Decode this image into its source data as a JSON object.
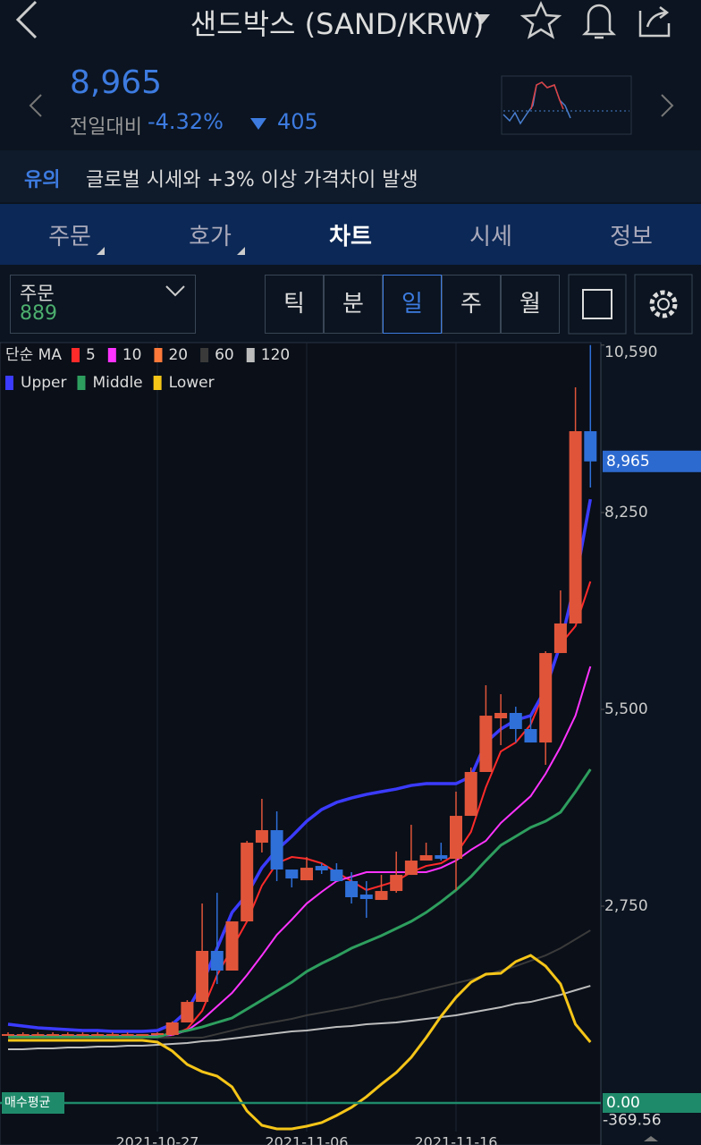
{
  "header": {
    "title": "샌드박스 (SAND/KRW)",
    "price": "8,965",
    "change_label": "전일대비",
    "change_pct": "-4.32%",
    "change_amt": "405"
  },
  "notice": {
    "tag": "유의",
    "text": "글로벌 시세와 +3% 이상 가격차이 발생"
  },
  "tabs": [
    "주문",
    "호가",
    "차트",
    "시세",
    "정보"
  ],
  "order_box": {
    "label": "주문",
    "value": "889"
  },
  "periods": [
    "틱",
    "분",
    "일",
    "주",
    "월"
  ],
  "chart_data": {
    "type": "candlestick",
    "ma_label": "단순 MA",
    "categories": [
      null,
      null,
      null,
      null,
      null,
      null,
      null,
      null,
      null,
      null,
      "2021-10-27",
      null,
      null,
      null,
      null,
      null,
      null,
      null,
      null,
      null,
      "2021-11-06",
      null,
      null,
      null,
      null,
      null,
      null,
      null,
      null,
      null,
      "2021-11-16",
      null,
      null,
      null,
      null,
      null,
      null,
      null,
      null,
      null
    ],
    "open": [
      950,
      950,
      950,
      950,
      950,
      950,
      950,
      950,
      950,
      950,
      962,
      950,
      1125,
      1412,
      2125,
      1850,
      2537,
      3637,
      3812,
      3262,
      3112,
      3312,
      3262,
      3100,
      2912,
      2837,
      2962,
      3187,
      3387,
      3462,
      3412,
      4012,
      4625,
      5375,
      5450,
      5225,
      5037,
      6287,
      6700,
      9387
    ],
    "high": [
      987,
      987,
      987,
      987,
      987,
      987,
      987,
      987,
      987,
      962,
      987,
      1140,
      1437,
      2787,
      2937,
      2537,
      3662,
      4250,
      4075,
      3262,
      3437,
      3350,
      3350,
      3225,
      3100,
      3187,
      3512,
      3887,
      3637,
      3637,
      4350,
      4687,
      5837,
      5712,
      5537,
      5412,
      6312,
      7162,
      10000,
      10590
    ],
    "low": [
      937,
      937,
      937,
      937,
      937,
      937,
      937,
      937,
      937,
      937,
      950,
      940,
      1125,
      1412,
      1662,
      1850,
      2537,
      3500,
      3100,
      3012,
      3112,
      3200,
      3100,
      2787,
      2587,
      2837,
      2937,
      3187,
      3387,
      3387,
      2975,
      4012,
      4625,
      5000,
      5037,
      5037,
      4725,
      6287,
      6700,
      8600
    ],
    "close": [
      962,
      962,
      962,
      962,
      962,
      962,
      962,
      962,
      962,
      962,
      975,
      1125,
      1412,
      2125,
      1850,
      2537,
      3637,
      3812,
      3262,
      3137,
      3287,
      3250,
      3100,
      2875,
      2850,
      2962,
      3187,
      3387,
      3462,
      3412,
      4012,
      4625,
      5412,
      5450,
      5225,
      5037,
      6287,
      6700,
      9387,
      8965
    ],
    "up_color": "#e0553a",
    "down_color": "#2f6fd8",
    "series": [
      {
        "name": "5",
        "color": "#ff2a2a",
        "values": [
          937,
          937,
          937,
          937,
          937,
          937,
          937,
          937,
          937,
          937,
          937,
          950,
          1037,
          1287,
          1787,
          2162,
          2537,
          3037,
          3350,
          3437,
          3412,
          3350,
          3225,
          3100,
          2975,
          3037,
          3100,
          3225,
          3312,
          3350,
          3475,
          3787,
          4412,
          4912,
          5037,
          5287,
          5787,
          6412,
          6662,
          7287
        ]
      },
      {
        "name": "10",
        "color": "#ff33ff",
        "values": [
          937,
          937,
          937,
          937,
          937,
          937,
          937,
          937,
          937,
          937,
          937,
          950,
          1012,
          1162,
          1350,
          1537,
          1787,
          2062,
          2350,
          2562,
          2787,
          2950,
          3100,
          3162,
          3225,
          3225,
          3225,
          3225,
          3225,
          3287,
          3387,
          3537,
          3662,
          3912,
          4100,
          4287,
          4600,
          4975,
          5412,
          6100
        ]
      },
      {
        "name": "20",
        "color": "#ff7a3a",
        "values": [
          925,
          925,
          925,
          925,
          925,
          925,
          925,
          925,
          925,
          925,
          925,
          975,
          1012,
          1062,
          1125,
          1187,
          1312,
          1437,
          1562,
          1687,
          1837,
          1950,
          2050,
          2162,
          2250,
          2337,
          2437,
          2537,
          2662,
          2812,
          2975,
          3162,
          3387,
          3600,
          3725,
          3850,
          3937,
          4062,
          4350,
          4662
        ]
      },
      {
        "name": "60",
        "color": "#3a3a3a",
        "values": [
          912,
          912,
          912,
          912,
          912,
          912,
          912,
          912,
          912,
          912,
          912,
          912,
          912,
          912,
          962,
          1012,
          1062,
          1100,
          1137,
          1175,
          1225,
          1262,
          1300,
          1337,
          1387,
          1437,
          1475,
          1525,
          1575,
          1625,
          1675,
          1725,
          1787,
          1850,
          1912,
          1987,
          2062,
          2162,
          2287,
          2412
        ]
      },
      {
        "name": "120",
        "color": "#bdbdbd",
        "values": [
          750,
          750,
          762,
          762,
          775,
          775,
          787,
          787,
          800,
          800,
          812,
          825,
          837,
          862,
          875,
          900,
          925,
          950,
          975,
          1000,
          1012,
          1037,
          1062,
          1075,
          1100,
          1112,
          1125,
          1150,
          1175,
          1200,
          1225,
          1262,
          1300,
          1337,
          1387,
          1412,
          1462,
          1512,
          1575,
          1637
        ]
      }
    ],
    "bands": [
      {
        "name": "Upper",
        "color": "#3b3bff",
        "values": [
          1100,
          1075,
          1050,
          1037,
          1025,
          1012,
          1012,
          1000,
          1000,
          1000,
          1012,
          1100,
          1287,
          1662,
          2162,
          2662,
          2912,
          3287,
          3537,
          3725,
          3937,
          4100,
          4200,
          4262,
          4312,
          4350,
          4387,
          4437,
          4462,
          4462,
          4462,
          4562,
          5037,
          5225,
          5350,
          5412,
          5787,
          6412,
          7287,
          8437
        ]
      },
      {
        "name": "Middle",
        "color": "#2e9e5e",
        "values": [
          925,
          925,
          925,
          925,
          925,
          925,
          925,
          925,
          925,
          925,
          925,
          975,
          1012,
          1062,
          1125,
          1187,
          1312,
          1437,
          1562,
          1687,
          1837,
          1950,
          2050,
          2162,
          2250,
          2337,
          2437,
          2537,
          2662,
          2812,
          2975,
          3162,
          3387,
          3600,
          3725,
          3850,
          3937,
          4062,
          4350,
          4662
        ]
      },
      {
        "name": "Lower",
        "color": "#f5c518",
        "values": [
          875,
          875,
          875,
          875,
          875,
          875,
          875,
          875,
          875,
          875,
          850,
          725,
          537,
          437,
          375,
          225,
          -112,
          -312,
          -362,
          -362,
          -325,
          -275,
          -175,
          -62,
          87,
          262,
          425,
          637,
          912,
          1212,
          1475,
          1687,
          1800,
          1812,
          1975,
          2062,
          1912,
          1662,
          1100,
          850
        ]
      }
    ],
    "ylim": [
      -400,
      10625
    ],
    "yticks": [
      {
        "value": 2750,
        "label": "2,750"
      },
      {
        "value": 5500,
        "label": "5,500"
      },
      {
        "value": 8250,
        "label": "8,250"
      },
      {
        "value": 10590,
        "label": "10,590"
      }
    ],
    "last_price": {
      "value": 8965,
      "label": "8,965"
    },
    "avg_price": {
      "name": "매수평균",
      "value": 0,
      "label": "0.00"
    },
    "min_label": {
      "value": -369.56,
      "label": "-369.56"
    },
    "grid": true
  }
}
